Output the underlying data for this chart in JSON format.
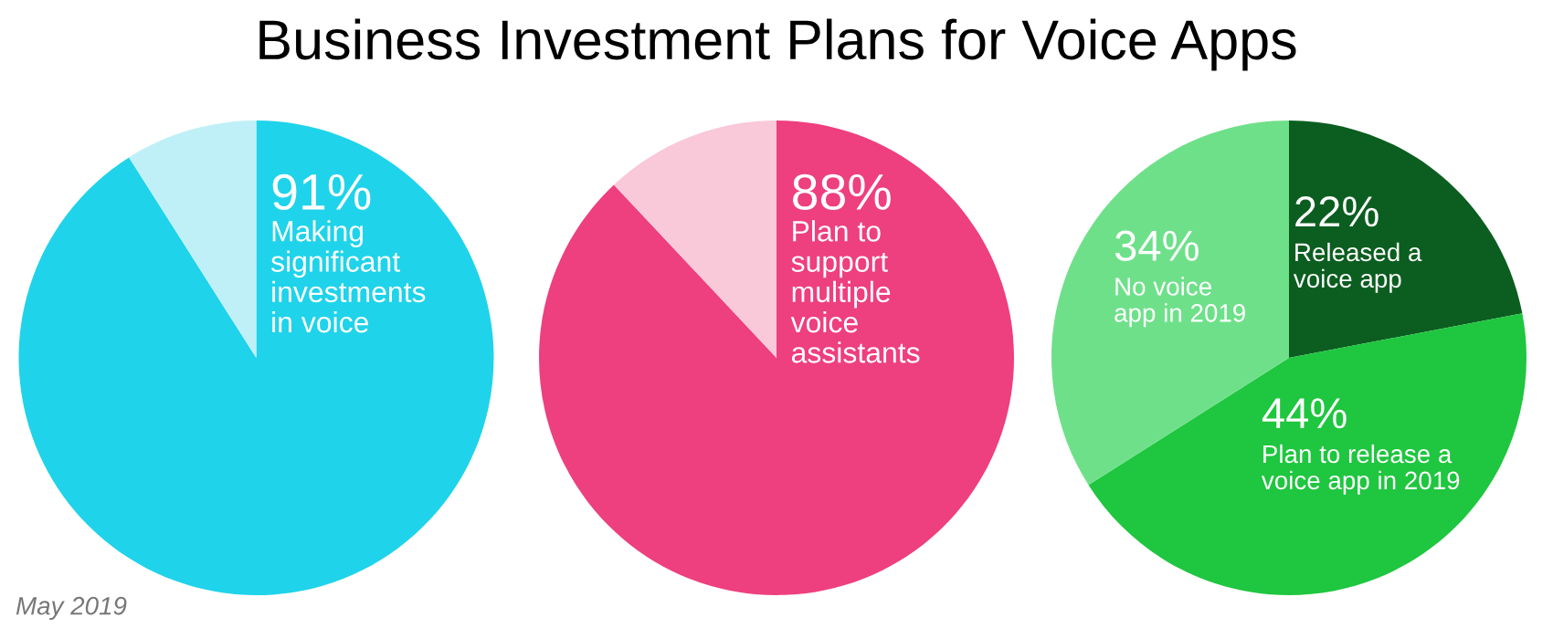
{
  "chart_data": [
    {
      "type": "pie",
      "title": "Business Investment Plans for Voice Apps",
      "annotations": [
        "May 2019"
      ],
      "categories": [
        "Making significant investments in voice",
        null
      ],
      "values": [
        91,
        9
      ],
      "colors": [
        "#1fd3ea",
        "#bff0f7"
      ],
      "value_labels": [
        "91%",
        null
      ]
    },
    {
      "type": "pie",
      "categories": [
        "Plan to support multiple voice assistants",
        null
      ],
      "values": [
        88,
        12
      ],
      "colors": [
        "#ee3f7e",
        "#f9c8d9"
      ],
      "value_labels": [
        "88%",
        null
      ]
    },
    {
      "type": "pie",
      "categories": [
        "Released a voice app",
        "Plan to release a voice app in 2019",
        "No voice app in 2019"
      ],
      "values": [
        22,
        44,
        34
      ],
      "colors": [
        "#0b5e1f",
        "#1fc63f",
        "#6fe08a"
      ],
      "value_labels": [
        "22%",
        "44%",
        "34%"
      ]
    }
  ]
}
